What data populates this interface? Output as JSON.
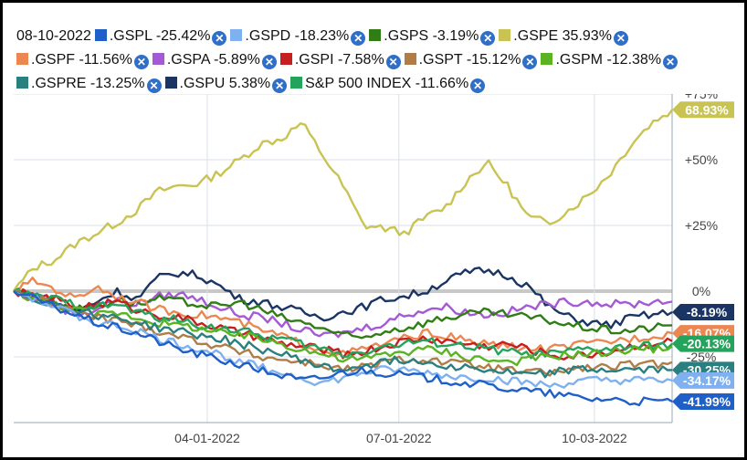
{
  "legend": {
    "date": "08-10-2022",
    "items": [
      {
        "label": ".GSPL -25.42%",
        "color": "#1f5fc8"
      },
      {
        "label": ".GSPD -18.23%",
        "color": "#7fb0ef"
      },
      {
        "label": ".GSPS -3.19%",
        "color": "#2f7d14"
      },
      {
        "label": ".GSPE 35.93%",
        "color": "#c9c354"
      },
      {
        "label": ".GSPF -11.56%",
        "color": "#ec8752"
      },
      {
        "label": ".GSPA -5.89%",
        "color": "#a35ad4"
      },
      {
        "label": ".GSPI -7.58%",
        "color": "#c61f1f"
      },
      {
        "label": ".GSPT -15.12%",
        "color": "#b07c48"
      },
      {
        "label": ".GSPM -12.38%",
        "color": "#59b322"
      },
      {
        "label": ".GSPRE -13.25%",
        "color": "#2a7f7f"
      },
      {
        "label": ".GSPU 5.38%",
        "color": "#1a3563"
      },
      {
        "label": "S&P 500 INDEX -11.66%",
        "color": "#24a35c"
      }
    ],
    "close_icon": "x-circle-icon"
  },
  "chart_data": {
    "type": "line",
    "title": "",
    "xlabel": "",
    "ylabel": "",
    "x_ticks": [
      "04-01-2022",
      "07-01-2022",
      "10-03-2022"
    ],
    "y_ticks": [
      "+75%",
      "+50%",
      "+25%",
      "0%",
      "-25%"
    ],
    "ylim": [
      -50,
      75
    ],
    "grid": true,
    "series": [
      {
        "name": ".GSPE",
        "color": "#c9c354",
        "end_label": "68.93%",
        "values": [
          0,
          9,
          12,
          18,
          22,
          26,
          31,
          38,
          40,
          41,
          45,
          50,
          56,
          58,
          64,
          52,
          40,
          25,
          24,
          22,
          28,
          32,
          42,
          49,
          40,
          28,
          26,
          31,
          37,
          45,
          56,
          64,
          69
        ]
      },
      {
        "name": ".GSPU",
        "color": "#1a3563",
        "end_label": "-8.19%",
        "values": [
          0,
          -2,
          -4,
          -8,
          -4,
          0,
          -3,
          5,
          7,
          6,
          2,
          -3,
          -4,
          -6,
          -8,
          -10,
          -8,
          -6,
          -3,
          -2,
          0,
          4,
          7,
          8,
          6,
          2,
          -6,
          -10,
          -12,
          -13,
          -10,
          -9,
          -8
        ]
      },
      {
        "name": ".GSPA",
        "color": "#a35ad4",
        "end_label": "",
        "values": [
          0,
          -2,
          -5,
          -9,
          -7,
          -3,
          -5,
          -2,
          -1,
          -3,
          -6,
          -9,
          -10,
          -12,
          -15,
          -17,
          -16,
          -14,
          -12,
          -9,
          -7,
          -6,
          -8,
          -9,
          -8,
          -6,
          -5,
          -4,
          -4,
          -5,
          -5,
          -4,
          -4
        ]
      },
      {
        "name": ".GSPS",
        "color": "#2f7d14",
        "end_label": "",
        "values": [
          0,
          -2,
          -4,
          -7,
          -6,
          -3,
          -5,
          -3,
          -4,
          -5,
          -6,
          -4,
          -7,
          -10,
          -12,
          -14,
          -17,
          -18,
          -15,
          -14,
          -12,
          -10,
          -9,
          -8,
          -9,
          -10,
          -11,
          -13,
          -14,
          -15,
          -15,
          -14,
          -13
        ]
      },
      {
        "name": ".GSPF",
        "color": "#ec8752",
        "end_label": "-16.07%",
        "values": [
          0,
          4,
          1,
          -3,
          2,
          -2,
          -4,
          -7,
          -8,
          -9,
          -10,
          -12,
          -15,
          -17,
          -20,
          -22,
          -24,
          -22,
          -20,
          -18,
          -16,
          -17,
          -19,
          -20,
          -21,
          -22,
          -22,
          -21,
          -20,
          -19,
          -18,
          -17,
          -16
        ]
      },
      {
        "name": ".GSPI",
        "color": "#c61f1f",
        "end_label": "",
        "values": [
          0,
          -2,
          -3,
          -6,
          -5,
          -4,
          -7,
          -9,
          -10,
          -12,
          -14,
          -16,
          -18,
          -20,
          -21,
          -22,
          -24,
          -23,
          -21,
          -19,
          -18,
          -19,
          -20,
          -21,
          -20,
          -22,
          -24,
          -25,
          -24,
          -23,
          -21,
          -20,
          -19
        ]
      },
      {
        "name": "S&P 500 INDEX",
        "color": "#24a35c",
        "end_label": "-20.13%",
        "values": [
          0,
          -2,
          -3,
          -5,
          -6,
          -5,
          -8,
          -10,
          -11,
          -13,
          -14,
          -15,
          -17,
          -18,
          -20,
          -22,
          -24,
          -23,
          -21,
          -20,
          -19,
          -20,
          -21,
          -22,
          -23,
          -24,
          -24,
          -23,
          -22,
          -22,
          -21,
          -21,
          -20
        ]
      },
      {
        "name": ".GSPM",
        "color": "#59b322",
        "end_label": "",
        "values": [
          0,
          -3,
          -5,
          -7,
          -9,
          -8,
          -10,
          -12,
          -13,
          -14,
          -16,
          -17,
          -18,
          -20,
          -22,
          -24,
          -26,
          -26,
          -24,
          -23,
          -22,
          -23,
          -25,
          -26,
          -27,
          -26,
          -25,
          -24,
          -24,
          -23,
          -22,
          -22,
          -21
        ]
      },
      {
        "name": ".GSPT",
        "color": "#b07c48",
        "end_label": "",
        "values": [
          0,
          -3,
          -5,
          -8,
          -10,
          -11,
          -13,
          -15,
          -17,
          -19,
          -21,
          -23,
          -25,
          -26,
          -27,
          -28,
          -30,
          -29,
          -27,
          -26,
          -26,
          -27,
          -28,
          -29,
          -30,
          -31,
          -31,
          -30,
          -29,
          -29,
          -28,
          -28,
          -27
        ]
      },
      {
        "name": ".GSPRE",
        "color": "#2a7f7f",
        "end_label": "-30.25%",
        "values": [
          0,
          -3,
          -5,
          -7,
          -9,
          -10,
          -12,
          -14,
          -15,
          -17,
          -18,
          -20,
          -22,
          -24,
          -26,
          -29,
          -30,
          -28,
          -27,
          -26,
          -27,
          -28,
          -29,
          -30,
          -31,
          -32,
          -31,
          -30,
          -30,
          -30,
          -30,
          -30,
          -30
        ]
      },
      {
        "name": ".GSPD",
        "color": "#7fb0ef",
        "end_label": "-34.17%",
        "values": [
          0,
          -3,
          -6,
          -9,
          -12,
          -13,
          -15,
          -18,
          -20,
          -22,
          -24,
          -27,
          -29,
          -31,
          -33,
          -35,
          -33,
          -31,
          -30,
          -30,
          -31,
          -32,
          -33,
          -33,
          -34,
          -35,
          -36,
          -35,
          -34,
          -34,
          -34,
          -34,
          -34
        ]
      },
      {
        "name": ".GSPL",
        "color": "#1f5fc8",
        "end_label": "-41.99%",
        "values": [
          0,
          -3,
          -6,
          -9,
          -12,
          -14,
          -16,
          -19,
          -22,
          -24,
          -26,
          -28,
          -30,
          -32,
          -34,
          -33,
          -31,
          -30,
          -31,
          -32,
          -33,
          -34,
          -35,
          -36,
          -37,
          -38,
          -39,
          -40,
          -41,
          -41,
          -42,
          -42,
          -42
        ]
      }
    ]
  }
}
